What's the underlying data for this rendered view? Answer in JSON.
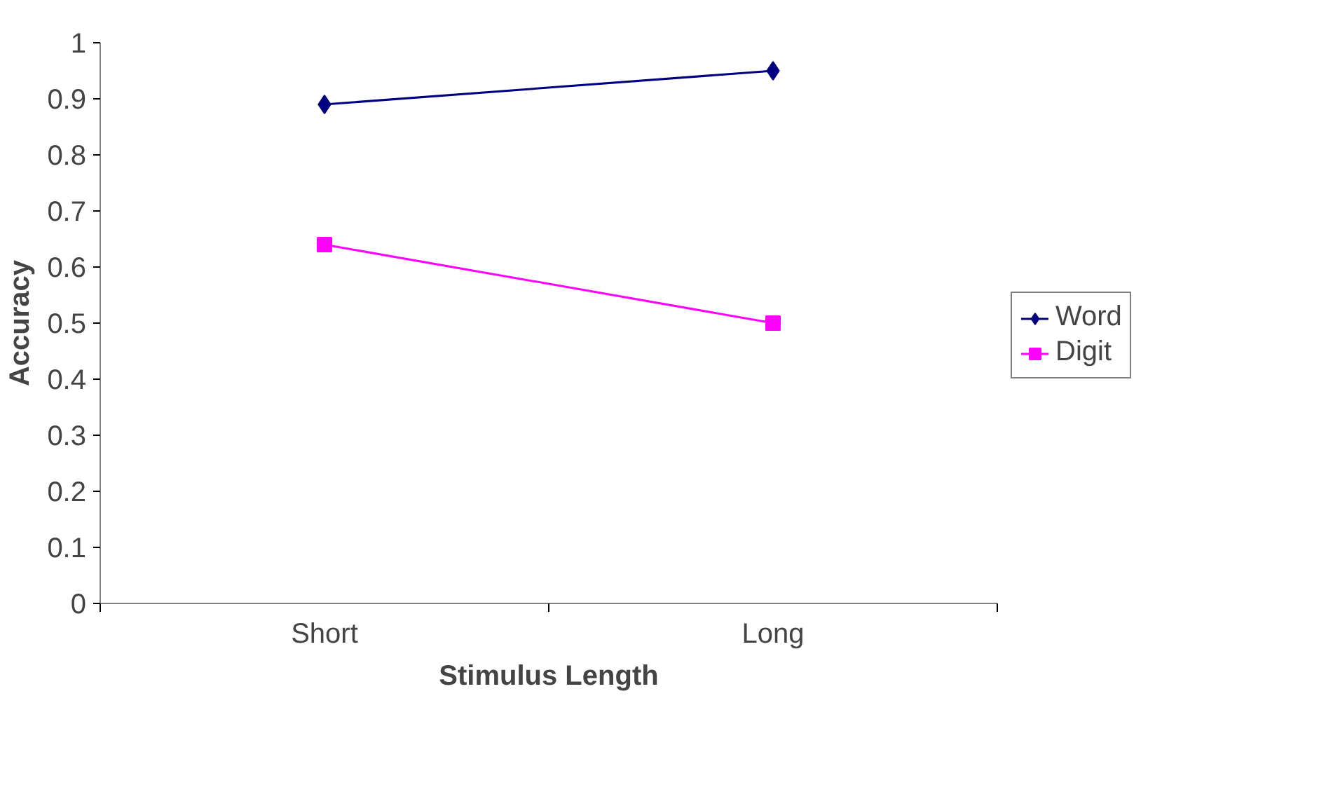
{
  "chart_data": {
    "type": "line",
    "xlabel": "Stimulus Length",
    "ylabel": "Accuracy",
    "categories": [
      "Short",
      "Long"
    ],
    "series": [
      {
        "name": "Word",
        "color": "#000080",
        "values": [
          0.89,
          0.95
        ],
        "marker": "diamond"
      },
      {
        "name": "Digit",
        "color": "#ff00ff",
        "values": [
          0.64,
          0.5
        ],
        "marker": "square"
      }
    ],
    "ylim": [
      0,
      1
    ],
    "yticks": [
      0,
      0.1,
      0.2,
      0.3,
      0.4,
      0.5,
      0.6,
      0.7,
      0.8,
      0.9,
      1
    ],
    "grid": false,
    "legend": "right",
    "line_style": "solid"
  }
}
